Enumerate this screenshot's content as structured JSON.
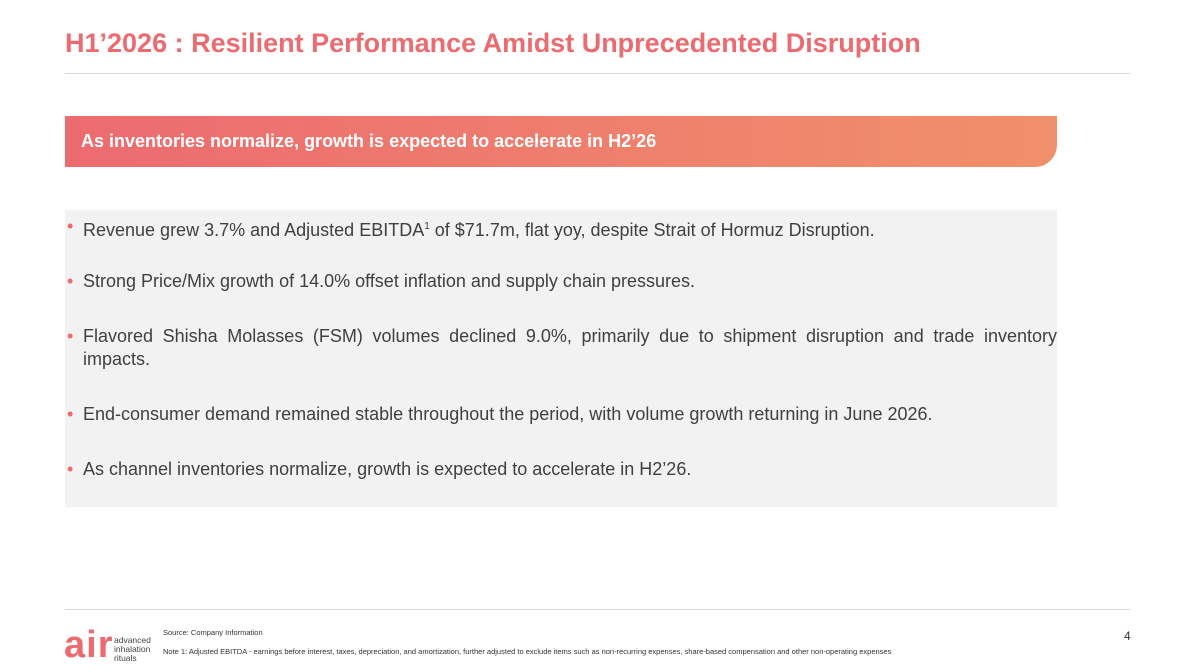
{
  "header": {
    "title": "H1’2026 : Resilient Performance Amidst Unprecedented Disruption"
  },
  "banner": {
    "text": "As inventories normalize, growth is expected to accelerate in H2’26"
  },
  "bullets": [
    {
      "before": "Revenue grew 3.7% and Adjusted EBITDA",
      "superscript": "1",
      "after": " of $71.7m, flat yoy, despite Strait of Hormuz Disruption."
    },
    {
      "text": "Strong Price/Mix growth of 14.0% offset inflation and supply chain pressures."
    },
    {
      "text": "Flavored Shisha Molasses (FSM) volumes declined 9.0%, primarily due to shipment disruption and trade inventory impacts."
    },
    {
      "text": "End-consumer demand remained stable throughout the period, with volume growth returning in June 2026."
    },
    {
      "text": "As channel inventories normalize, growth is expected to accelerate in H2’26."
    }
  ],
  "footer": {
    "logo": {
      "mark": "air",
      "line1": "advanced",
      "line2": "inhalation",
      "line3": "rituals"
    },
    "source": "Source: Company Information",
    "note": "Note 1: Adjusted EBITDA - earnings before interest, taxes, depreciation, and amortization, further adjusted to exclude items such as non-recurring expenses, share-based compensation and other non-operating expenses",
    "page": "4"
  }
}
